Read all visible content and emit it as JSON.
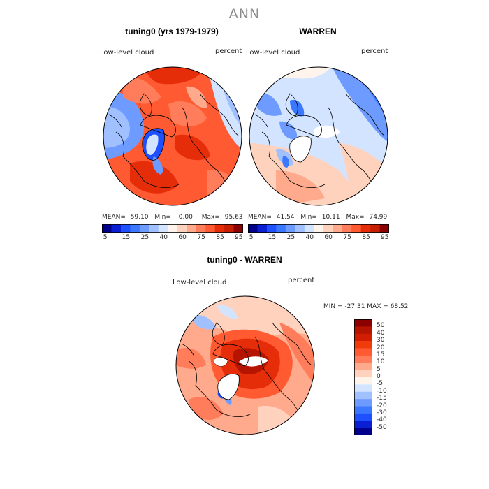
{
  "figure": {
    "title": "ANN",
    "colors": {
      "blue_5": "#00008b",
      "blue_15": "#0a1ed2",
      "blue_25": "#1e50ff",
      "blue_40": "#6e9bff",
      "pale_blue": "#c8dcff",
      "near_white": "#fff4ec",
      "pale_red": "#ffc8b0",
      "light_red": "#ff9a78",
      "red": "#ff5a32",
      "deep_red": "#e62d0a",
      "dark_red": "#b41400",
      "darkest_red": "#8b0000"
    }
  },
  "panel1": {
    "title": "tuning0 (yrs 1979-1979)",
    "variable": "Low-level cloud",
    "units": "percent",
    "stats": {
      "mean_label": "MEAN=",
      "mean": "59.10",
      "min_label": "Min=",
      "min": "0.00",
      "max_label": "Max=",
      "max": "95.63"
    }
  },
  "panel2": {
    "title": "WARREN",
    "variable": "Low-level cloud",
    "units": "percent",
    "stats": {
      "mean_label": "MEAN=",
      "mean": "41.54",
      "min_label": "Min=",
      "min": "10.11",
      "max_label": "Max=",
      "max": "74.99"
    }
  },
  "colorbar_top": {
    "labels": [
      "5",
      "15",
      "25",
      "40",
      "60",
      "75",
      "85",
      "95"
    ],
    "colors": [
      "#00008b",
      "#0a1ed2",
      "#1e50ff",
      "#3c78ff",
      "#6e9bff",
      "#a0c0ff",
      "#d2e4ff",
      "#fff4ec",
      "#ffd2be",
      "#ffaa8c",
      "#ff7d5a",
      "#ff5a32",
      "#e62d0a",
      "#c81e00",
      "#8b0000"
    ]
  },
  "panel3": {
    "title": "tuning0 - WARREN",
    "variable": "Low-level cloud",
    "units": "percent",
    "minmax": "MIN = -27.31 MAX =  68.52"
  },
  "colorbar_diff": {
    "labels": [
      "50",
      "40",
      "30",
      "20",
      "15",
      "10",
      "5",
      "0",
      "-5",
      "-10",
      "-15",
      "-20",
      "-30",
      "-40",
      "-50"
    ],
    "colors": [
      "#8b0000",
      "#b41400",
      "#d21e00",
      "#f03c0a",
      "#ff5a32",
      "#ff7d5a",
      "#ffaa8c",
      "#ffd2be",
      "#fff4ec",
      "#d2e4ff",
      "#a0c0ff",
      "#6e9bff",
      "#3c78ff",
      "#1e50ff",
      "#0a1ed2",
      "#00008b"
    ]
  }
}
